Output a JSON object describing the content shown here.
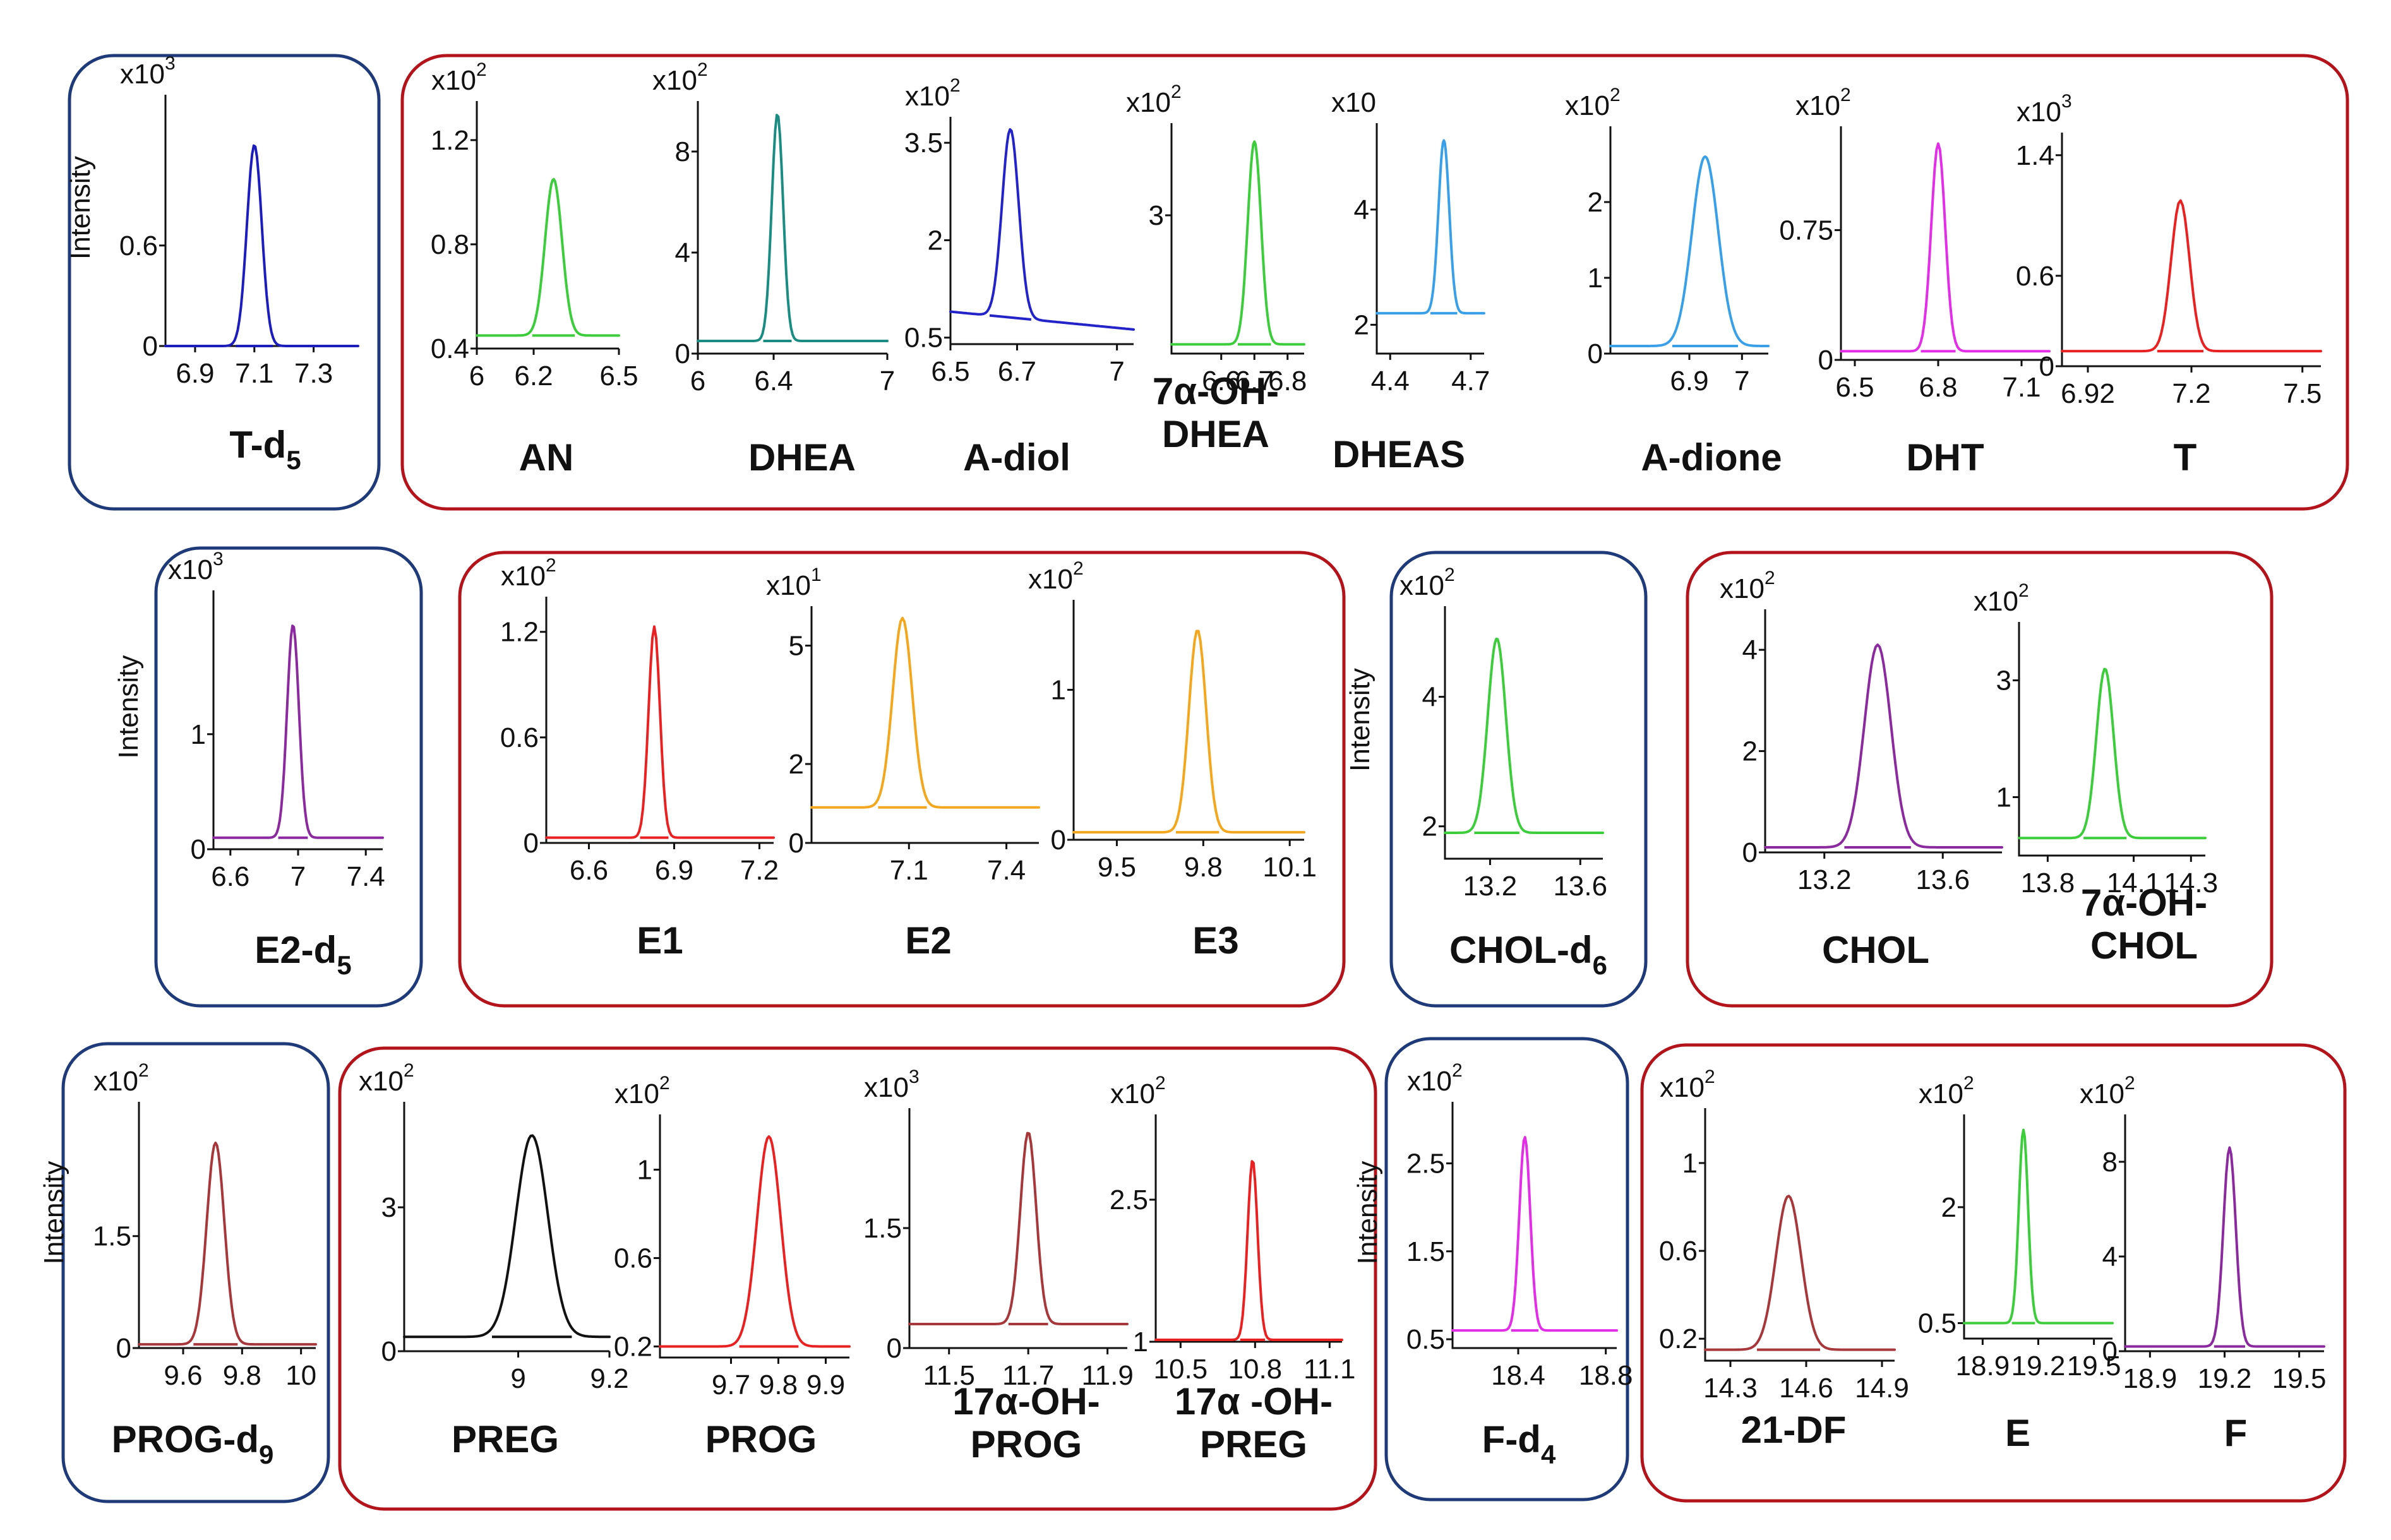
{
  "colors": {
    "internal_standard_box": "#1f3a78",
    "analyte_box": "#b3141b"
  },
  "axis_label": "Intensity",
  "chart_data": [
    {
      "type": "line",
      "name": "T-d5",
      "sub": "5",
      "xlim": [
        6.8,
        7.45
      ],
      "ylim": [
        0,
        1.5
      ],
      "multiplier": "x10",
      "exp": "3",
      "xticks": [
        "6.9",
        "7.1",
        "7.3"
      ],
      "yticks": [
        "0",
        "0.6"
      ],
      "ylabel": "Intensity",
      "color": "#1d1dbb",
      "peak": 7.1,
      "width": 0.025,
      "height": 1.2,
      "baseline": 0,
      "slope": 0
    },
    {
      "type": "line",
      "name": "AN",
      "sub": "",
      "xlim": [
        6.0,
        6.5
      ],
      "ylim": [
        0.4,
        1.35
      ],
      "multiplier": "x10",
      "exp": "2",
      "xticks": [
        "6",
        "6.2",
        "6.5"
      ],
      "yticks": [
        "0.4",
        "0.8",
        "1.2"
      ],
      "ylabel": "",
      "color": "#3ccc3c",
      "peak": 6.27,
      "width": 0.03,
      "height": 0.6,
      "baseline": 0.45,
      "slope": 0
    },
    {
      "type": "line",
      "name": "DHEA",
      "sub": "",
      "xlim": [
        6.0,
        7.0
      ],
      "ylim": [
        0,
        10
      ],
      "multiplier": "x10",
      "exp": "2",
      "xticks": [
        "6",
        "6.4",
        "7"
      ],
      "yticks": [
        "0",
        "4",
        "8"
      ],
      "ylabel": "",
      "color": "#1a8c82",
      "peak": 6.42,
      "width": 0.03,
      "height": 9.0,
      "baseline": 0.5,
      "slope": 0
    },
    {
      "type": "line",
      "name": "A-diol",
      "sub": "",
      "xlim": [
        6.5,
        7.05
      ],
      "ylim": [
        0.4,
        3.9
      ],
      "multiplier": "x10",
      "exp": "2",
      "xticks": [
        "6.5",
        "6.7",
        "7"
      ],
      "yticks": [
        "0.5",
        "2",
        "3.5"
      ],
      "ylabel": "",
      "color": "#2323c8",
      "peak": 6.68,
      "width": 0.025,
      "height": 2.9,
      "baseline": 0.9,
      "slope": -0.5
    },
    {
      "type": "line",
      "name": "7α-OH-DHEA",
      "sub": "",
      "xlim": [
        6.45,
        6.85
      ],
      "ylim": [
        0,
        5
      ],
      "multiplier": "x10",
      "exp": "2",
      "xticks": [
        "6.6",
        "6.7",
        "6.8"
      ],
      "yticks": [
        "3"
      ],
      "ylabel": "",
      "color": "#3ccc3c",
      "peak": 6.7,
      "width": 0.02,
      "height": 4.4,
      "baseline": 0.2,
      "slope": 0
    },
    {
      "type": "line",
      "name": "DHEAS",
      "sub": "",
      "xlim": [
        4.35,
        4.75
      ],
      "ylim": [
        1.5,
        5.5
      ],
      "multiplier": "x10",
      "exp": "",
      "xticks": [
        "4.4",
        "4.7"
      ],
      "yticks": [
        "2",
        "4"
      ],
      "ylabel": "",
      "color": "#39a0e8",
      "peak": 4.6,
      "width": 0.02,
      "height": 3.0,
      "baseline": 2.2,
      "slope": 0
    },
    {
      "type": "line",
      "name": "A-dione",
      "sub": "",
      "xlim": [
        6.75,
        7.05
      ],
      "ylim": [
        0,
        3
      ],
      "multiplier": "x10",
      "exp": "2",
      "xticks": [
        "6.9",
        "7"
      ],
      "yticks": [
        "0",
        "1",
        "2"
      ],
      "ylabel": "",
      "color": "#39a0e8",
      "peak": 6.93,
      "width": 0.025,
      "height": 2.5,
      "baseline": 0.1,
      "slope": 0
    },
    {
      "type": "line",
      "name": "DHT",
      "sub": "",
      "xlim": [
        6.45,
        7.2
      ],
      "ylim": [
        0,
        1.35
      ],
      "multiplier": "x10",
      "exp": "2",
      "xticks": [
        "6.5",
        "6.8",
        "7.1"
      ],
      "yticks": [
        "0",
        "0.75"
      ],
      "ylabel": "",
      "color": "#e22ee6",
      "peak": 6.8,
      "width": 0.025,
      "height": 1.2,
      "baseline": 0.05,
      "slope": 0
    },
    {
      "type": "line",
      "name": "T",
      "sub": "",
      "xlim": [
        6.85,
        7.55
      ],
      "ylim": [
        0,
        1.55
      ],
      "multiplier": "x10",
      "exp": "3",
      "xticks": [
        "6.92",
        "7.2",
        "7.5"
      ],
      "yticks": [
        "0",
        "0.6",
        "1.4"
      ],
      "ylabel": "",
      "color": "#e82222",
      "peak": 7.17,
      "width": 0.025,
      "height": 1.0,
      "baseline": 0.1,
      "slope": 0
    },
    {
      "type": "line",
      "name": "E2-d5",
      "sub": "5",
      "xlim": [
        6.5,
        7.5
      ],
      "ylim": [
        0,
        2.25
      ],
      "multiplier": "x10",
      "exp": "3",
      "xticks": [
        "6.6",
        "7",
        "7.4"
      ],
      "yticks": [
        "0",
        "1"
      ],
      "ylabel": "Intensity",
      "color": "#8a2a9e",
      "peak": 6.97,
      "width": 0.035,
      "height": 1.85,
      "baseline": 0.1,
      "slope": 0
    },
    {
      "type": "line",
      "name": "E1",
      "sub": "",
      "xlim": [
        6.45,
        7.25
      ],
      "ylim": [
        0,
        1.4
      ],
      "multiplier": "x10",
      "exp": "2",
      "xticks": [
        "6.6",
        "6.9",
        "7.2"
      ],
      "yticks": [
        "0",
        "0.6",
        "1.2"
      ],
      "ylabel": "",
      "color": "#e82222",
      "peak": 6.83,
      "width": 0.02,
      "height": 1.2,
      "baseline": 0.03,
      "slope": 0
    },
    {
      "type": "line",
      "name": "E2",
      "sub": "",
      "xlim": [
        6.8,
        7.5
      ],
      "ylim": [
        0,
        6
      ],
      "multiplier": "x10",
      "exp": "1",
      "xticks": [
        "7.1",
        "7.4"
      ],
      "yticks": [
        "0",
        "2",
        "5"
      ],
      "ylabel": "",
      "color": "#f2a71e",
      "peak": 7.08,
      "width": 0.03,
      "height": 4.8,
      "baseline": 0.9,
      "slope": 0
    },
    {
      "type": "line",
      "name": "E3",
      "sub": "",
      "xlim": [
        9.35,
        10.15
      ],
      "ylim": [
        0,
        1.6
      ],
      "multiplier": "x10",
      "exp": "2",
      "xticks": [
        "9.5",
        "9.8",
        "10.1"
      ],
      "yticks": [
        "0",
        "1"
      ],
      "ylabel": "",
      "color": "#f2a71e",
      "peak": 9.78,
      "width": 0.03,
      "height": 1.35,
      "baseline": 0.05,
      "slope": 0
    },
    {
      "type": "line",
      "name": "CHOL-d6",
      "sub": "6",
      "xlim": [
        13.0,
        13.7
      ],
      "ylim": [
        1.5,
        5.4
      ],
      "multiplier": "x10",
      "exp": "2",
      "xticks": [
        "13.2",
        "13.6"
      ],
      "yticks": [
        "2",
        "4"
      ],
      "ylabel": "Intensity",
      "color": "#3ccc3c",
      "peak": 13.23,
      "width": 0.04,
      "height": 3.0,
      "baseline": 1.9,
      "slope": 0
    },
    {
      "type": "line",
      "name": "CHOL",
      "sub": "",
      "xlim": [
        13.0,
        13.8
      ],
      "ylim": [
        0,
        4.8
      ],
      "multiplier": "x10",
      "exp": "2",
      "xticks": [
        "13.2",
        "13.6"
      ],
      "yticks": [
        "0",
        "2",
        "4"
      ],
      "ylabel": "",
      "color": "#8a2a9e",
      "peak": 13.38,
      "width": 0.045,
      "height": 4.0,
      "baseline": 0.1,
      "slope": 0
    },
    {
      "type": "line",
      "name": "7α-OH-CHOL",
      "sub": "",
      "xlim": [
        13.7,
        14.35
      ],
      "ylim": [
        0,
        4
      ],
      "multiplier": "x10",
      "exp": "2",
      "xticks": [
        "13.8",
        "14.1",
        "14.3"
      ],
      "yticks": [
        "1",
        "3"
      ],
      "ylabel": "",
      "color": "#3ccc3c",
      "peak": 14.0,
      "width": 0.03,
      "height": 2.9,
      "baseline": 0.3,
      "slope": 0
    },
    {
      "type": "line",
      "name": "PROG-d9",
      "sub": "9",
      "xlim": [
        9.45,
        10.05
      ],
      "ylim": [
        0,
        3.3
      ],
      "multiplier": "x10",
      "exp": "2",
      "xticks": [
        "9.6",
        "9.8",
        "10"
      ],
      "yticks": [
        "0",
        "1.5"
      ],
      "ylabel": "Intensity",
      "color": "#a6373a",
      "peak": 9.71,
      "width": 0.03,
      "height": 2.7,
      "baseline": 0.05,
      "slope": 0
    },
    {
      "type": "line",
      "name": "PREG",
      "sub": "",
      "xlim": [
        8.75,
        9.2
      ],
      "ylim": [
        0,
        5.2
      ],
      "multiplier": "x10",
      "exp": "2",
      "xticks": [
        "9",
        "9.2"
      ],
      "yticks": [
        "0",
        "3"
      ],
      "ylabel": "",
      "color": "#111111",
      "peak": 9.03,
      "width": 0.035,
      "height": 4.2,
      "baseline": 0.3,
      "slope": 0
    },
    {
      "type": "line",
      "name": "PROG",
      "sub": "",
      "xlim": [
        9.55,
        9.95
      ],
      "ylim": [
        0.15,
        1.25
      ],
      "multiplier": "x10",
      "exp": "2",
      "xticks": [
        "9.7",
        "9.8",
        "9.9"
      ],
      "yticks": [
        "0.2",
        "0.6",
        "1"
      ],
      "ylabel": "",
      "color": "#e82222",
      "peak": 9.78,
      "width": 0.025,
      "height": 0.95,
      "baseline": 0.2,
      "slope": 0
    },
    {
      "type": "line",
      "name": "17α-OH-PROG",
      "sub": "",
      "xlim": [
        11.4,
        11.95
      ],
      "ylim": [
        0,
        3
      ],
      "multiplier": "x10",
      "exp": "3",
      "xticks": [
        "11.5",
        "11.7",
        "11.9"
      ],
      "yticks": [
        "0",
        "1.5"
      ],
      "ylabel": "",
      "color": "#a6373a",
      "peak": 11.7,
      "width": 0.02,
      "height": 2.4,
      "baseline": 0.3,
      "slope": 0
    },
    {
      "type": "line",
      "name": "17α -OH-PREG",
      "sub": "",
      "xlim": [
        10.4,
        11.15
      ],
      "ylim": [
        1,
        3.4
      ],
      "multiplier": "x10",
      "exp": "2",
      "xticks": [
        "10.5",
        "10.8",
        "11.1"
      ],
      "yticks": [
        "1",
        "2.5"
      ],
      "ylabel": "",
      "color": "#e82222",
      "peak": 10.79,
      "width": 0.02,
      "height": 1.9,
      "baseline": 1.02,
      "slope": 0
    },
    {
      "type": "line",
      "name": "F-d4",
      "sub": "4",
      "xlim": [
        18.1,
        18.85
      ],
      "ylim": [
        0.4,
        3.2
      ],
      "multiplier": "x10",
      "exp": "2",
      "xticks": [
        "18.4",
        "18.8"
      ],
      "yticks": [
        "0.5",
        "1.5",
        "2.5"
      ],
      "ylabel": "Intensity",
      "color": "#e22ee6",
      "peak": 18.43,
      "width": 0.025,
      "height": 2.2,
      "baseline": 0.6,
      "slope": 0
    },
    {
      "type": "line",
      "name": "21-DF",
      "sub": "",
      "xlim": [
        14.2,
        14.95
      ],
      "ylim": [
        0.1,
        1.25
      ],
      "multiplier": "x10",
      "exp": "2",
      "xticks": [
        "14.3",
        "14.6",
        "14.9"
      ],
      "yticks": [
        "0.2",
        "0.6",
        "1"
      ],
      "ylabel": "",
      "color": "#a6373a",
      "peak": 14.53,
      "width": 0.05,
      "height": 0.7,
      "baseline": 0.15,
      "slope": 0
    },
    {
      "type": "line",
      "name": "E",
      "sub": "",
      "xlim": [
        18.8,
        19.6
      ],
      "ylim": [
        0.3,
        3.2
      ],
      "multiplier": "x10",
      "exp": "2",
      "xticks": [
        "18.9",
        "19.2",
        "19.5"
      ],
      "yticks": [
        "0.5",
        "2"
      ],
      "ylabel": "",
      "color": "#3ccc3c",
      "peak": 19.12,
      "width": 0.025,
      "height": 2.5,
      "baseline": 0.5,
      "slope": 0
    },
    {
      "type": "line",
      "name": "F",
      "sub": "",
      "xlim": [
        18.8,
        19.6
      ],
      "ylim": [
        0,
        10
      ],
      "multiplier": "x10",
      "exp": "2",
      "xticks": [
        "18.9",
        "19.2",
        "19.5"
      ],
      "yticks": [
        "0",
        "4",
        "8"
      ],
      "ylabel": "",
      "color": "#8a2a9e",
      "peak": 19.22,
      "width": 0.025,
      "height": 8.4,
      "baseline": 0.2,
      "slope": 0
    }
  ]
}
